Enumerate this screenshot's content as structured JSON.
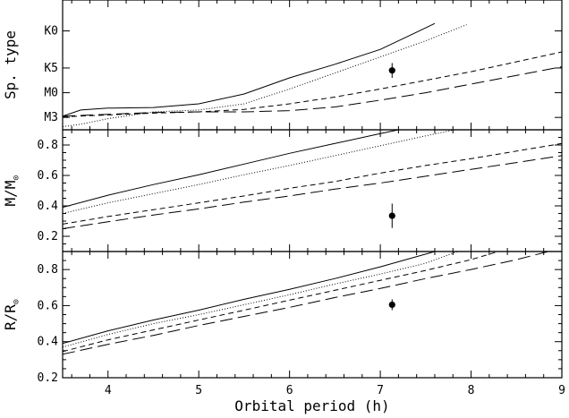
{
  "chart_data": {
    "type": "line",
    "shared_x": {
      "label": "Orbital period (h)",
      "range": [
        3.5,
        9
      ],
      "ticks": [
        4,
        5,
        6,
        7,
        8,
        9
      ],
      "tick_labels": [
        "4",
        "5",
        "6",
        "7",
        "8",
        "9"
      ]
    },
    "panels": [
      {
        "id": "sptype",
        "ylabel": "Sp. type",
        "ylabel_sub": "",
        "y_range": [
          0,
          10.5
        ],
        "y_ticks": [
          {
            "value": 1,
            "label": "M3"
          },
          {
            "value": 3,
            "label": "M0"
          },
          {
            "value": 5,
            "label": "K5"
          },
          {
            "value": 8,
            "label": "K0"
          }
        ],
        "series": [
          {
            "style": "solid",
            "x": [
              3.5,
              3.7,
              4.0,
              4.5,
              5.0,
              5.5,
              6.0,
              6.5,
              7.0,
              7.4,
              7.6
            ],
            "y": [
              1.1,
              1.6,
              1.75,
              1.8,
              2.1,
              2.9,
              4.2,
              5.3,
              6.5,
              7.9,
              8.6
            ]
          },
          {
            "style": "dotted",
            "x": [
              3.5,
              3.7,
              4.0,
              4.5,
              5.0,
              5.5,
              6.0,
              6.5,
              7.0,
              7.5,
              7.95
            ],
            "y": [
              0.25,
              0.45,
              0.9,
              1.45,
              1.6,
              2.1,
              3.3,
              4.6,
              5.9,
              7.2,
              8.5
            ]
          },
          {
            "style": "short-dash",
            "x": [
              3.5,
              4.0,
              4.5,
              5.0,
              5.5,
              6.0,
              6.5,
              7.0,
              7.5,
              8.0,
              8.5,
              9.0
            ],
            "y": [
              1.05,
              1.2,
              1.35,
              1.45,
              1.65,
              2.1,
              2.65,
              3.3,
              4.0,
              4.7,
              5.5,
              6.3
            ]
          },
          {
            "style": "long-dash",
            "x": [
              3.5,
              4.0,
              4.5,
              5.0,
              5.5,
              6.0,
              6.5,
              7.0,
              7.5,
              8.0,
              8.5,
              9.0
            ],
            "y": [
              1.1,
              1.25,
              1.4,
              1.45,
              1.45,
              1.55,
              1.85,
              2.4,
              3.0,
              3.7,
              4.4,
              5.1
            ]
          }
        ],
        "point": {
          "x": 7.13,
          "y": 4.8,
          "yerr": 0.6
        }
      },
      {
        "id": "mass",
        "ylabel": "M/M",
        "ylabel_sub": "⊙",
        "y_range": [
          0.1,
          0.9
        ],
        "y_ticks": [
          {
            "value": 0.2,
            "label": "0.2"
          },
          {
            "value": 0.4,
            "label": "0.4"
          },
          {
            "value": 0.6,
            "label": "0.6"
          },
          {
            "value": 0.8,
            "label": "0.8"
          }
        ],
        "series": [
          {
            "style": "solid",
            "x": [
              3.5,
              4.0,
              4.5,
              5.0,
              5.5,
              6.0,
              6.5,
              7.0,
              7.2
            ],
            "y": [
              0.39,
              0.47,
              0.54,
              0.605,
              0.675,
              0.745,
              0.81,
              0.875,
              0.9
            ]
          },
          {
            "style": "dotted",
            "x": [
              3.5,
              4.0,
              4.5,
              5.0,
              5.5,
              6.0,
              6.5,
              7.0,
              7.5,
              7.9
            ],
            "y": [
              0.35,
              0.42,
              0.48,
              0.54,
              0.605,
              0.665,
              0.73,
              0.795,
              0.86,
              0.91
            ]
          },
          {
            "style": "short-dash",
            "x": [
              3.5,
              4.0,
              4.5,
              5.0,
              5.5,
              6.0,
              6.5,
              7.0,
              7.5,
              8.0,
              8.5,
              9.0
            ],
            "y": [
              0.28,
              0.33,
              0.375,
              0.42,
              0.465,
              0.515,
              0.56,
              0.615,
              0.665,
              0.71,
              0.76,
              0.81
            ]
          },
          {
            "style": "long-dash",
            "x": [
              3.5,
              4.0,
              4.5,
              5.0,
              5.5,
              6.0,
              6.5,
              7.0,
              7.5,
              8.0,
              8.5,
              9.0
            ],
            "y": [
              0.25,
              0.295,
              0.34,
              0.38,
              0.425,
              0.465,
              0.51,
              0.55,
              0.595,
              0.64,
              0.685,
              0.73
            ]
          }
        ],
        "point": {
          "x": 7.13,
          "y": 0.335,
          "yerr": 0.08
        }
      },
      {
        "id": "radius",
        "ylabel": "R/R",
        "ylabel_sub": "⊙",
        "y_range": [
          0.2,
          0.9
        ],
        "y_ticks": [
          {
            "value": 0.2,
            "label": "0.2"
          },
          {
            "value": 0.4,
            "label": "0.4"
          },
          {
            "value": 0.6,
            "label": "0.6"
          },
          {
            "value": 0.8,
            "label": "0.8"
          }
        ],
        "series": [
          {
            "style": "solid",
            "x": [
              3.5,
              4.0,
              4.5,
              5.0,
              5.5,
              6.0,
              6.5,
              7.0,
              7.6
            ],
            "y": [
              0.39,
              0.46,
              0.52,
              0.575,
              0.635,
              0.69,
              0.75,
              0.815,
              0.9
            ]
          },
          {
            "style": "dotted",
            "x": [
              3.5,
              4.0,
              4.5,
              5.0,
              5.5,
              6.0,
              6.5,
              7.0,
              7.5,
              7.85
            ],
            "y": [
              0.37,
              0.44,
              0.5,
              0.55,
              0.605,
              0.66,
              0.72,
              0.775,
              0.835,
              0.9
            ]
          },
          {
            "style": "short-dash",
            "x": [
              3.5,
              4.0,
              4.5,
              5.0,
              5.5,
              6.0,
              6.5,
              7.0,
              7.5,
              8.0,
              8.3
            ],
            "y": [
              0.345,
              0.41,
              0.465,
              0.52,
              0.575,
              0.63,
              0.685,
              0.74,
              0.795,
              0.855,
              0.9
            ]
          },
          {
            "style": "long-dash",
            "x": [
              3.5,
              4.0,
              4.5,
              5.0,
              5.5,
              6.0,
              6.5,
              7.0,
              7.5,
              8.0,
              8.5,
              8.85
            ],
            "y": [
              0.33,
              0.385,
              0.435,
              0.49,
              0.54,
              0.59,
              0.645,
              0.695,
              0.75,
              0.8,
              0.855,
              0.9
            ]
          }
        ],
        "point": {
          "x": 7.13,
          "y": 0.605,
          "yerr": 0.03
        }
      }
    ]
  }
}
